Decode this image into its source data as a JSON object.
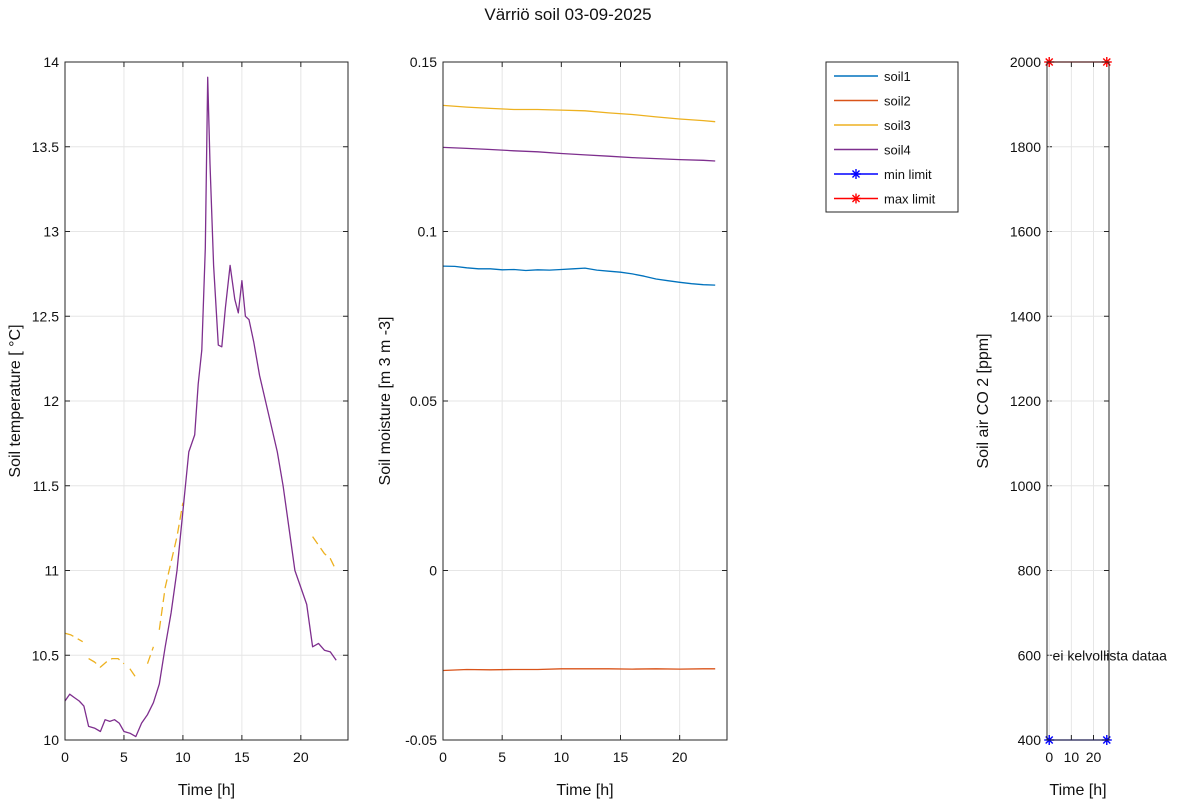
{
  "title": "Värriö soil 03-09-2025",
  "colors": {
    "soil1": "#0072BD",
    "soil2": "#D95319",
    "soil3": "#EDB120",
    "soil4": "#7E2F8E",
    "min_limit": "#0000FF",
    "max_limit": "#FF0000"
  },
  "chart_data": [
    {
      "type": "line",
      "xlabel": "Time [h]",
      "ylabel": "Soil temperature [  °C]",
      "xlim": [
        0,
        24
      ],
      "ylim": [
        10,
        14
      ],
      "xticks": [
        "0",
        "5",
        "10",
        "15",
        "20"
      ],
      "yticks": [
        "10",
        "10.5",
        "11",
        "11.5",
        "12",
        "12.5",
        "13",
        "13.5",
        "14"
      ],
      "grid": true,
      "series": [
        {
          "name": "soil3",
          "style": "dashed",
          "segments": [
            [
              [
                0,
                10.63
              ],
              [
                0.5,
                10.62
              ],
              [
                1.0,
                10.6
              ],
              [
                1.5,
                10.58
              ]
            ],
            [
              [
                2.0,
                10.48
              ],
              [
                2.5,
                10.46
              ],
              [
                3.0,
                10.43
              ],
              [
                3.5,
                10.46
              ],
              [
                4.0,
                10.48
              ],
              [
                4.5,
                10.48
              ],
              [
                5.0,
                10.45
              ]
            ],
            [
              [
                5.5,
                10.42
              ],
              [
                6.0,
                10.37
              ]
            ],
            [
              [
                7.0,
                10.45
              ],
              [
                7.5,
                10.55
              ]
            ],
            [
              [
                8.0,
                10.65
              ],
              [
                8.5,
                10.9
              ],
              [
                9.0,
                11.05
              ],
              [
                9.5,
                11.2
              ],
              [
                10.0,
                11.4
              ]
            ],
            [
              [
                21.0,
                11.2
              ],
              [
                21.5,
                11.15
              ],
              [
                22.0,
                11.1
              ],
              [
                22.5,
                11.07
              ],
              [
                23.0,
                11.0
              ]
            ]
          ]
        },
        {
          "name": "soil4",
          "style": "solid",
          "segments": [
            [
              [
                0,
                10.23
              ],
              [
                0.4,
                10.27
              ],
              [
                0.8,
                10.25
              ],
              [
                1.2,
                10.23
              ],
              [
                1.6,
                10.2
              ],
              [
                2.0,
                10.08
              ],
              [
                2.5,
                10.07
              ],
              [
                3.0,
                10.05
              ],
              [
                3.4,
                10.12
              ],
              [
                3.8,
                10.11
              ],
              [
                4.2,
                10.12
              ],
              [
                4.6,
                10.1
              ],
              [
                5.0,
                10.05
              ],
              [
                5.5,
                10.04
              ],
              [
                6.0,
                10.02
              ],
              [
                6.5,
                10.1
              ],
              [
                7.0,
                10.15
              ],
              [
                7.5,
                10.22
              ],
              [
                8.0,
                10.33
              ],
              [
                8.5,
                10.55
              ],
              [
                9.0,
                10.75
              ],
              [
                9.5,
                11.0
              ],
              [
                10.0,
                11.35
              ],
              [
                10.5,
                11.7
              ],
              [
                11.0,
                11.8
              ],
              [
                11.3,
                12.1
              ],
              [
                11.6,
                12.3
              ],
              [
                11.9,
                12.9
              ],
              [
                12.1,
                13.91
              ],
              [
                12.3,
                13.4
              ],
              [
                12.6,
                12.8
              ],
              [
                13.0,
                12.33
              ],
              [
                13.3,
                12.32
              ],
              [
                13.6,
                12.55
              ],
              [
                14.0,
                12.8
              ],
              [
                14.4,
                12.6
              ],
              [
                14.7,
                12.52
              ],
              [
                15.0,
                12.71
              ],
              [
                15.3,
                12.5
              ],
              [
                15.6,
                12.48
              ],
              [
                16.0,
                12.35
              ],
              [
                16.5,
                12.15
              ],
              [
                17.0,
                12.0
              ],
              [
                17.5,
                11.85
              ],
              [
                18.0,
                11.7
              ],
              [
                18.5,
                11.5
              ],
              [
                19.0,
                11.25
              ],
              [
                19.5,
                11.0
              ],
              [
                20.0,
                10.9
              ],
              [
                20.5,
                10.8
              ],
              [
                21.0,
                10.55
              ],
              [
                21.5,
                10.57
              ],
              [
                22.0,
                10.53
              ],
              [
                22.5,
                10.52
              ],
              [
                23.0,
                10.47
              ]
            ]
          ]
        }
      ]
    },
    {
      "type": "line",
      "xlabel": "Time [h]",
      "ylabel": "Soil moisture [m  3 m -3]",
      "xlim": [
        0,
        24
      ],
      "ylim": [
        -0.05,
        0.15
      ],
      "xticks": [
        "0",
        "5",
        "10",
        "15",
        "20"
      ],
      "yticks": [
        "-0.05",
        "0",
        "0.05",
        "0.1",
        "0.15"
      ],
      "grid": true,
      "series": [
        {
          "name": "soil1",
          "x": [
            0,
            1,
            2,
            3,
            4,
            5,
            6,
            7,
            8,
            9,
            10,
            11,
            12,
            13,
            14,
            15,
            16,
            17,
            18,
            19,
            20,
            21,
            22,
            23
          ],
          "values": [
            0.0898,
            0.0897,
            0.0893,
            0.089,
            0.089,
            0.0887,
            0.0888,
            0.0885,
            0.0887,
            0.0886,
            0.0888,
            0.089,
            0.0892,
            0.0886,
            0.0883,
            0.088,
            0.0875,
            0.0868,
            0.086,
            0.0855,
            0.085,
            0.0846,
            0.0843,
            0.0842
          ]
        },
        {
          "name": "soil2",
          "x": [
            0,
            2,
            4,
            6,
            8,
            10,
            12,
            14,
            16,
            18,
            20,
            22,
            23
          ],
          "values": [
            -0.0295,
            -0.0292,
            -0.0293,
            -0.0292,
            -0.0292,
            -0.029,
            -0.029,
            -0.029,
            -0.0291,
            -0.029,
            -0.0291,
            -0.029,
            -0.029
          ]
        },
        {
          "name": "soil3",
          "x": [
            0,
            2,
            4,
            6,
            8,
            10,
            12,
            14,
            16,
            18,
            20,
            22,
            23
          ],
          "values": [
            0.1372,
            0.1367,
            0.1363,
            0.136,
            0.136,
            0.1358,
            0.1356,
            0.135,
            0.1345,
            0.1338,
            0.1332,
            0.1327,
            0.1324
          ]
        },
        {
          "name": "soil4",
          "x": [
            0,
            2,
            4,
            6,
            8,
            10,
            12,
            14,
            16,
            18,
            20,
            22,
            23
          ],
          "values": [
            0.1248,
            0.1245,
            0.1242,
            0.1238,
            0.1235,
            0.123,
            0.1226,
            0.1222,
            0.1218,
            0.1215,
            0.1212,
            0.121,
            0.1208
          ]
        }
      ]
    },
    {
      "type": "line",
      "xlabel": "Time [h]",
      "ylabel": "Soil air CO  2  [ppm]",
      "xlim": [
        -1,
        27
      ],
      "ylim": [
        400,
        2000
      ],
      "xticks": [
        "0",
        "10",
        "20"
      ],
      "xtick_values": [
        0,
        10,
        20
      ],
      "yticks": [
        "400",
        "600",
        "800",
        "1000",
        "1200",
        "1400",
        "1600",
        "1800",
        "2000"
      ],
      "grid": true,
      "annotation": "ei kelvollista dataa",
      "series": [
        {
          "name": "min limit",
          "x": [
            0,
            26
          ],
          "values": [
            400,
            400
          ]
        },
        {
          "name": "max limit",
          "x": [
            0,
            26
          ],
          "values": [
            2000,
            2000
          ]
        }
      ]
    }
  ],
  "legend": {
    "placement": "top-right",
    "entries": [
      {
        "key": "soil1",
        "label": "soil1",
        "marker": false
      },
      {
        "key": "soil2",
        "label": "soil2",
        "marker": false
      },
      {
        "key": "soil3",
        "label": "soil3",
        "marker": false
      },
      {
        "key": "soil4",
        "label": "soil4",
        "marker": false
      },
      {
        "key": "min_limit",
        "label": "min limit",
        "marker": true
      },
      {
        "key": "max_limit",
        "label": "max limit",
        "marker": true
      }
    ]
  }
}
